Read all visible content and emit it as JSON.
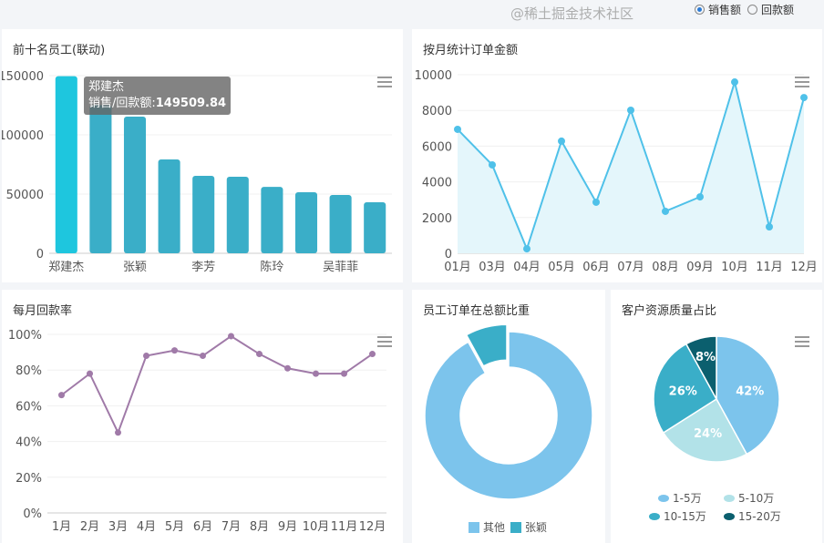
{
  "toggle": {
    "options": [
      "销售额",
      "回款额"
    ],
    "selected": 0
  },
  "chart_data": [
    {
      "id": "top10",
      "type": "bar",
      "title": "前十名员工(联动)",
      "categories": [
        "郑建杰",
        "",
        "张颖",
        "",
        "李芳",
        "",
        "陈玲",
        "",
        "吴菲菲",
        ""
      ],
      "values": [
        149509.84,
        125000,
        115400,
        79200,
        65400,
        64600,
        56100,
        51500,
        49200,
        43100
      ],
      "ylim": [
        0,
        150000
      ],
      "yticks": [
        0,
        50000,
        100000,
        150000
      ],
      "color": "#3aaec8",
      "highlight_color": "#1ec6de",
      "tooltip": {
        "name": "郑建杰",
        "label": "销售/回款额:",
        "value": "149509.84"
      }
    },
    {
      "id": "monthly",
      "type": "area",
      "title": "按月统计订单金额",
      "categories": [
        "01月",
        "03月",
        "04月",
        "05月",
        "06月",
        "07月",
        "08月",
        "09月",
        "10月",
        "11月",
        "12月"
      ],
      "values": [
        6940,
        4950,
        250,
        6280,
        2860,
        8010,
        2350,
        3160,
        9590,
        1480,
        8720
      ],
      "ylim": [
        0,
        10000
      ],
      "yticks": [
        0,
        2000,
        4000,
        6000,
        8000,
        10000
      ],
      "color": "#4fc1e9"
    },
    {
      "id": "rate",
      "type": "line",
      "title": "每月回款率",
      "categories": [
        "1月",
        "2月",
        "3月",
        "4月",
        "5月",
        "6月",
        "7月",
        "8月",
        "9月",
        "10月",
        "11月",
        "12月"
      ],
      "values": [
        66,
        78,
        45,
        88,
        91,
        88,
        99,
        89,
        81,
        78,
        78,
        89
      ],
      "ylim": [
        0,
        100
      ],
      "yticks": [
        "0%",
        "20%",
        "40%",
        "60%",
        "80%",
        "100%"
      ],
      "color": "#a07aa8"
    },
    {
      "id": "share",
      "type": "pie",
      "title": "员工订单在总额比重",
      "donut": true,
      "slices": [
        {
          "name": "其他",
          "value": 92,
          "color": "#7cc4ec"
        },
        {
          "name": "张颖",
          "value": 8,
          "color": "#3aaec8"
        }
      ]
    },
    {
      "id": "quality",
      "type": "pie",
      "title": "客户资源质量占比",
      "slices": [
        {
          "name": "1-5万",
          "value": 42,
          "label": "42%",
          "color": "#7cc4ec"
        },
        {
          "name": "5-10万",
          "value": 24,
          "label": "24%",
          "color": "#b2e2e8"
        },
        {
          "name": "10-15万",
          "value": 26,
          "label": "26%",
          "color": "#3aaec8"
        },
        {
          "name": "15-20万",
          "value": 8,
          "label": "8%",
          "color": "#0b5f6e"
        }
      ]
    }
  ],
  "watermark": "@稀土掘金技术社区"
}
